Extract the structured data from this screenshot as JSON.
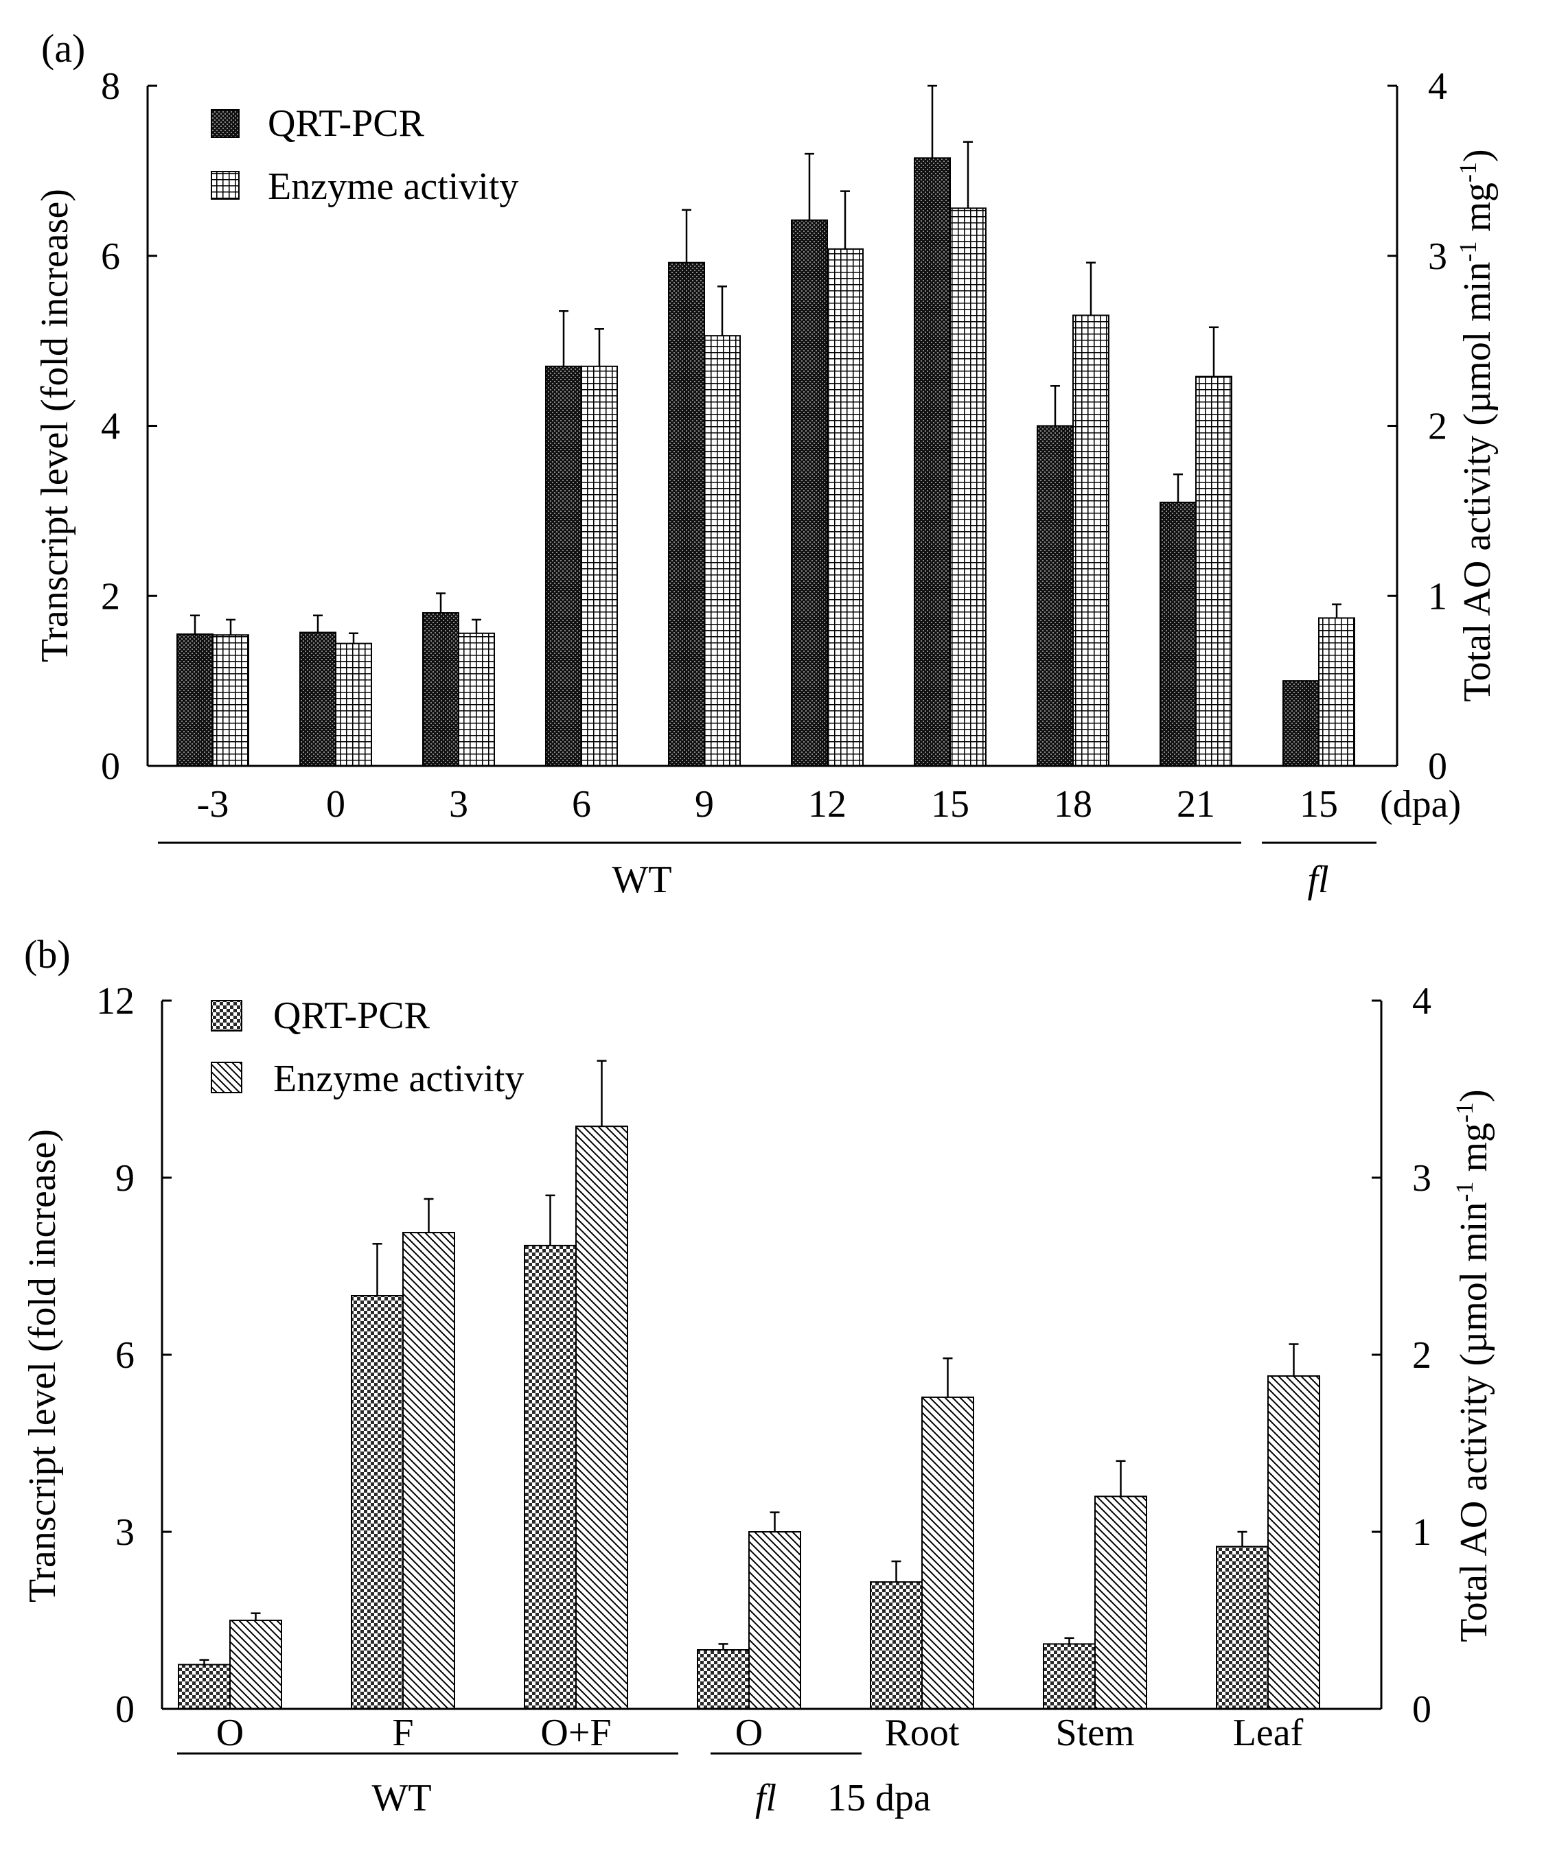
{
  "figure": {
    "panel_a_label": "(a)",
    "panel_b_label": "(b)"
  },
  "chart_data": [
    {
      "type": "bar",
      "panel": "(a)",
      "categories": [
        "-3",
        "0",
        "3",
        "6",
        "9",
        "12",
        "15",
        "18",
        "21",
        "15"
      ],
      "x_unit": "(dpa)",
      "group_labels": [
        "WT",
        "fl"
      ],
      "group_spans": [
        [
          0,
          8
        ],
        [
          9,
          9
        ]
      ],
      "ylabel": "Transcript level (fold increase)",
      "y2label_main": "Total AO activity (µmol min",
      "y2label_sup1": "-1",
      "y2label_mid": " mg",
      "y2label_sup2": "-1",
      "y2label_end": ")",
      "ylim": [
        0,
        8
      ],
      "y2lim": [
        0,
        4
      ],
      "yticks": [
        0,
        2,
        4,
        6,
        8
      ],
      "y2ticks": [
        0,
        1,
        2,
        3,
        4
      ],
      "legend_position": "top-left",
      "series": [
        {
          "name": "QRT-PCR",
          "axis": "left",
          "pattern": "dots",
          "values": [
            1.55,
            1.57,
            1.8,
            4.7,
            5.92,
            6.42,
            7.15,
            4.0,
            3.1,
            1.0
          ],
          "errors": [
            0.22,
            0.2,
            0.23,
            0.65,
            0.62,
            0.78,
            0.85,
            0.47,
            0.33,
            0.0
          ]
        },
        {
          "name": "Enzyme activity",
          "axis": "right",
          "pattern": "grid",
          "values": [
            0.77,
            0.72,
            0.78,
            2.35,
            2.53,
            3.04,
            3.28,
            2.65,
            2.29,
            0.87
          ],
          "errors": [
            0.09,
            0.06,
            0.08,
            0.22,
            0.29,
            0.34,
            0.39,
            0.31,
            0.29,
            0.08
          ]
        }
      ]
    },
    {
      "type": "bar",
      "panel": "(b)",
      "categories": [
        "O",
        "F",
        "O+F",
        "O",
        "Root",
        "Stem",
        "Leaf"
      ],
      "group_labels": [
        "WT",
        "fl",
        "15 dpa"
      ],
      "group_spans": [
        [
          0,
          2
        ],
        [
          3,
          3
        ]
      ],
      "ylabel": "Transcript level (fold increase)",
      "y2label_main": "Total AO activity (µmol min",
      "y2label_sup1": "-1",
      "y2label_mid": " mg",
      "y2label_sup2": "-1",
      "y2label_end": ")",
      "ylim": [
        0,
        12
      ],
      "y2lim": [
        0,
        4
      ],
      "yticks": [
        0,
        3,
        6,
        9,
        12
      ],
      "y2ticks": [
        0,
        1,
        2,
        3,
        4
      ],
      "legend_position": "top-left",
      "series": [
        {
          "name": "QRT-PCR",
          "axis": "left",
          "pattern": "checker",
          "values": [
            0.75,
            7.0,
            7.85,
            1.0,
            2.15,
            1.1,
            2.75
          ],
          "errors": [
            0.08,
            0.88,
            0.85,
            0.1,
            0.35,
            0.1,
            0.25
          ]
        },
        {
          "name": "Enzyme activity",
          "axis": "right",
          "pattern": "diagonal",
          "values": [
            0.5,
            2.69,
            3.29,
            1.0,
            1.76,
            1.2,
            1.88
          ],
          "errors": [
            0.04,
            0.19,
            0.37,
            0.11,
            0.22,
            0.2,
            0.18
          ]
        }
      ]
    }
  ]
}
